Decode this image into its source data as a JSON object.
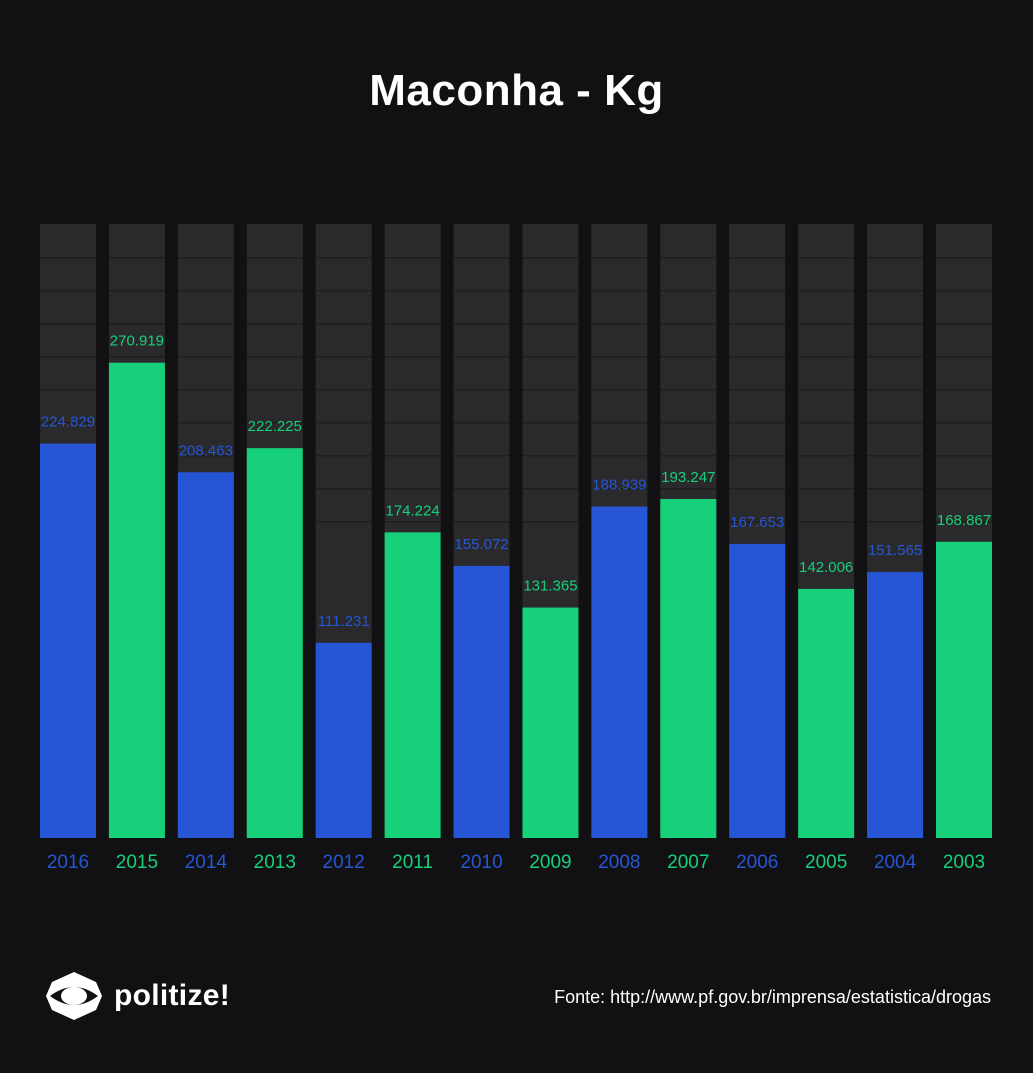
{
  "title": "Maconha - Kg",
  "colors": {
    "background": "#111113",
    "track": "#2a2a2c",
    "blue": "#2656d6",
    "green": "#16d07a"
  },
  "chart_data": {
    "type": "bar",
    "title": "Maconha - Kg",
    "categories": [
      "2016",
      "2015",
      "2014",
      "2013",
      "2012",
      "2011",
      "2010",
      "2009",
      "2008",
      "2007",
      "2006",
      "2005",
      "2004",
      "2003"
    ],
    "values": [
      224.829,
      270.919,
      208.463,
      222.225,
      111.231,
      174.224,
      155.072,
      131.365,
      188.939,
      193.247,
      167.653,
      142.006,
      151.565,
      168.867
    ],
    "value_labels": [
      "224.829",
      "270.919",
      "208.463",
      "222.225",
      "111.231",
      "174.224",
      "155.072",
      "131.365",
      "188.939",
      "193.247",
      "167.653",
      "142.006",
      "151.565",
      "168.867"
    ],
    "bar_colors": [
      "blue",
      "green",
      "blue",
      "green",
      "blue",
      "green",
      "blue",
      "green",
      "blue",
      "green",
      "blue",
      "green",
      "blue",
      "green"
    ],
    "ylim": [
      0,
      350
    ],
    "grid": true,
    "legend": "none"
  },
  "footer": {
    "logo_text": "politize!",
    "logo_icon": "politize-eye-logo",
    "source": "Fonte: http://www.pf.gov.br/imprensa/estatistica/drogas"
  }
}
